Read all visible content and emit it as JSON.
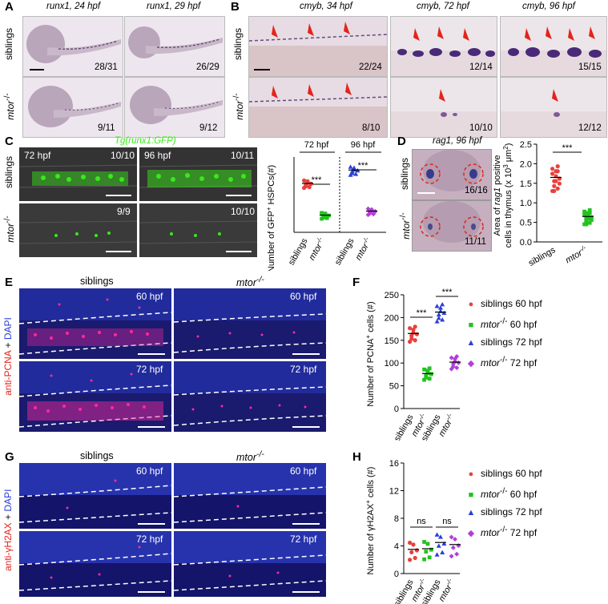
{
  "panels": {
    "A": {
      "letter": "A",
      "headers": [
        "runx1, 24 hpf",
        "runx1, 29 hpf"
      ],
      "rows": [
        "siblings",
        "mtor-/-"
      ],
      "ratios": [
        "28/31",
        "26/29",
        "9/11",
        "9/12"
      ]
    },
    "B": {
      "letter": "B",
      "headers": [
        "cmyb, 34 hpf",
        "cmyb, 72 hpf",
        "cmyb, 96 hpf"
      ],
      "rows": [
        "siblings",
        "mtor-/-"
      ],
      "ratios": [
        "22/24",
        "12/14",
        "15/15",
        "8/10",
        "10/10",
        "12/12"
      ]
    },
    "C": {
      "letter": "C",
      "title": "Tg(runx1:GFP)",
      "times": [
        "72 hpf",
        "96 hpf"
      ],
      "rows": [
        "siblings",
        "mtor-/-"
      ],
      "ratios": [
        "10/10",
        "10/11",
        "9/9",
        "10/10"
      ]
    },
    "D": {
      "letter": "D",
      "header": "rag1, 96 hpf",
      "rows": [
        "siblings",
        "mtor-/-"
      ],
      "ratios": [
        "16/16",
        "11/11"
      ]
    },
    "E": {
      "letter": "E",
      "col_headers": [
        "siblings",
        "mtor-/-"
      ],
      "times": [
        "60 hpf",
        "60 hpf",
        "72 hpf",
        "72 hpf"
      ],
      "side_label": "anti-PCNA + DAPI"
    },
    "F": {
      "letter": "F"
    },
    "G": {
      "letter": "G",
      "col_headers": [
        "siblings",
        "mtor-/-"
      ],
      "times": [
        "60 hpf",
        "60 hpf",
        "72 hpf",
        "72 hpf"
      ],
      "side_label": "anti-γH2AX + DAPI"
    },
    "H": {
      "letter": "H"
    }
  },
  "legend": [
    {
      "label": "siblings 60 hpf",
      "color": "#e8413c",
      "marker": "●"
    },
    {
      "label": "mtor-/- 60 hpf",
      "color": "#22c31e",
      "marker": "■"
    },
    {
      "label": "siblings 72 hpf",
      "color": "#2a3fd6",
      "marker": "▲"
    },
    {
      "label": "mtor-/- 72 hpf",
      "color": "#b23fd6",
      "marker": "◆"
    }
  ],
  "colors": {
    "sib60": "#e8413c",
    "mut60": "#22c31e",
    "sib72": "#2a3fd6",
    "mut72": "#b23fd6",
    "gfp": "#39e81a",
    "embryo": "#d9cbd8"
  },
  "chart_data": [
    {
      "type": "scatter",
      "panel": "C",
      "ylabel": "Number of GFP+ HSPCs(#)",
      "group_labels": [
        "72 hpf",
        "96 hpf"
      ],
      "categories": [
        "siblings",
        "mtor-/-",
        "siblings",
        "mtor-/-"
      ],
      "means": [
        143,
        50,
        182,
        62
      ],
      "significance": [
        "***",
        "***"
      ]
    },
    {
      "type": "scatter",
      "panel": "D",
      "ylabel": "Area of rag1 positive cells in thymus (x 10^3 μm^2)",
      "categories": [
        "siblings",
        "mtor-/-"
      ],
      "means": [
        1.65,
        0.65
      ],
      "yticks": [
        "0.0",
        "0.5",
        "1.0",
        "1.5",
        "2.0",
        "2.5"
      ],
      "ylim": [
        0,
        2.5
      ],
      "significance": [
        "***"
      ]
    },
    {
      "type": "scatter",
      "panel": "F",
      "ylabel": "Number of PCNA+ cells (#)",
      "categories": [
        "siblings",
        "mtor-/-",
        "siblings",
        "mtor-/-"
      ],
      "means": [
        165,
        77,
        212,
        102
      ],
      "yticks": [
        "0",
        "50",
        "100",
        "150",
        "200",
        "250"
      ],
      "ylim": [
        0,
        250
      ],
      "significance": [
        "***",
        "***"
      ]
    },
    {
      "type": "scatter",
      "panel": "H",
      "ylabel": "Number of γH2AX+ cells (#)",
      "categories": [
        "siblings",
        "mtor-/-",
        "siblings",
        "mtor-/-"
      ],
      "means": [
        3.5,
        3.6,
        4.5,
        4.2
      ],
      "yticks": [
        "0",
        "4",
        "8",
        "12",
        "16"
      ],
      "ylim": [
        0,
        16
      ],
      "significance": [
        "ns",
        "ns"
      ]
    }
  ]
}
